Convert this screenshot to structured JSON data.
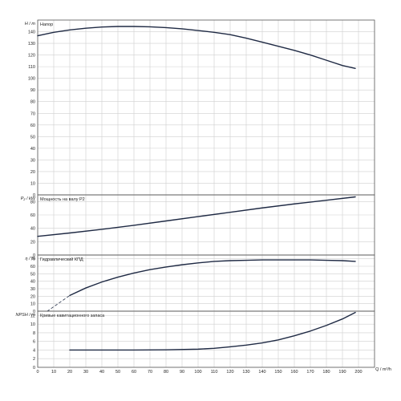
{
  "chart_data": {
    "type": "line",
    "x_axis": {
      "label": "Q / m³/h",
      "ticks": [
        0,
        10,
        20,
        30,
        40,
        50,
        60,
        70,
        80,
        90,
        100,
        110,
        120,
        130,
        140,
        150,
        160,
        170,
        180,
        190,
        200
      ],
      "range": [
        0,
        210
      ]
    },
    "grid": true,
    "panels": [
      {
        "id": "head",
        "title": "Напор",
        "ylabel": "H / m",
        "ylim": [
          0,
          150
        ],
        "yticks": [
          0,
          10,
          20,
          30,
          40,
          50,
          60,
          70,
          80,
          90,
          100,
          110,
          120,
          130,
          140
        ],
        "series": [
          {
            "x": [
              0,
              10,
              20,
              30,
              40,
              50,
              60,
              70,
              80,
              90,
              100,
              110,
              120,
              130,
              140,
              150,
              160,
              170,
              180,
              190,
              198
            ],
            "y": [
              136.5,
              139.5,
              141.5,
              143,
              144,
              144.5,
              144.5,
              144.2,
              143.5,
              142.5,
              141,
              139.5,
              137.5,
              134.5,
              131,
              127.5,
              124,
              120,
              115.5,
              111,
              108.5
            ]
          }
        ]
      },
      {
        "id": "power",
        "title": "Мощность на валу P2",
        "ylabel": "P₂ / kW",
        "ylim": [
          0,
          90
        ],
        "yticks": [
          0,
          20,
          40,
          60,
          80
        ],
        "series": [
          {
            "x": [
              0,
              20,
              40,
              60,
              80,
              100,
              120,
              140,
              160,
              180,
              198
            ],
            "y": [
              28,
              33,
              38.5,
              44.5,
              51,
              57.5,
              64,
              70.5,
              76.5,
              82,
              87
            ]
          }
        ]
      },
      {
        "id": "efficiency",
        "title": "Гидравлический КПД",
        "ylabel": "η / %",
        "ylim": [
          0,
          75
        ],
        "yticks": [
          0,
          10,
          20,
          30,
          40,
          50,
          60,
          70
        ],
        "series": [
          {
            "x": [
              20,
              30,
              40,
              50,
              60,
              70,
              80,
              90,
              100,
              110,
              120,
              130,
              140,
              150,
              160,
              170,
              180,
              190,
              198
            ],
            "y": [
              21,
              31,
              39,
              45.5,
              51,
              55.5,
              59,
              62,
              64.5,
              66.5,
              67.5,
              68,
              68.5,
              68.5,
              68.5,
              68.5,
              68,
              67.5,
              66.5
            ]
          },
          {
            "dashed": true,
            "x": [
              6,
              20
            ],
            "y": [
              0,
              21
            ]
          }
        ]
      },
      {
        "id": "npsh",
        "title": "Кривые кавитационного запаса",
        "ylabel": "NPSH / m",
        "ylim": [
          0,
          13
        ],
        "yticks": [
          0,
          2,
          4,
          6,
          8,
          10,
          12
        ],
        "series": [
          {
            "x": [
              20,
              40,
              60,
              80,
              100,
              110,
              120,
              130,
              140,
              150,
              160,
              170,
              180,
              190,
              198
            ],
            "y": [
              4,
              4,
              4,
              4.05,
              4.2,
              4.4,
              4.75,
              5.15,
              5.65,
              6.35,
              7.3,
              8.4,
              9.7,
              11.2,
              12.7
            ]
          }
        ]
      }
    ]
  }
}
